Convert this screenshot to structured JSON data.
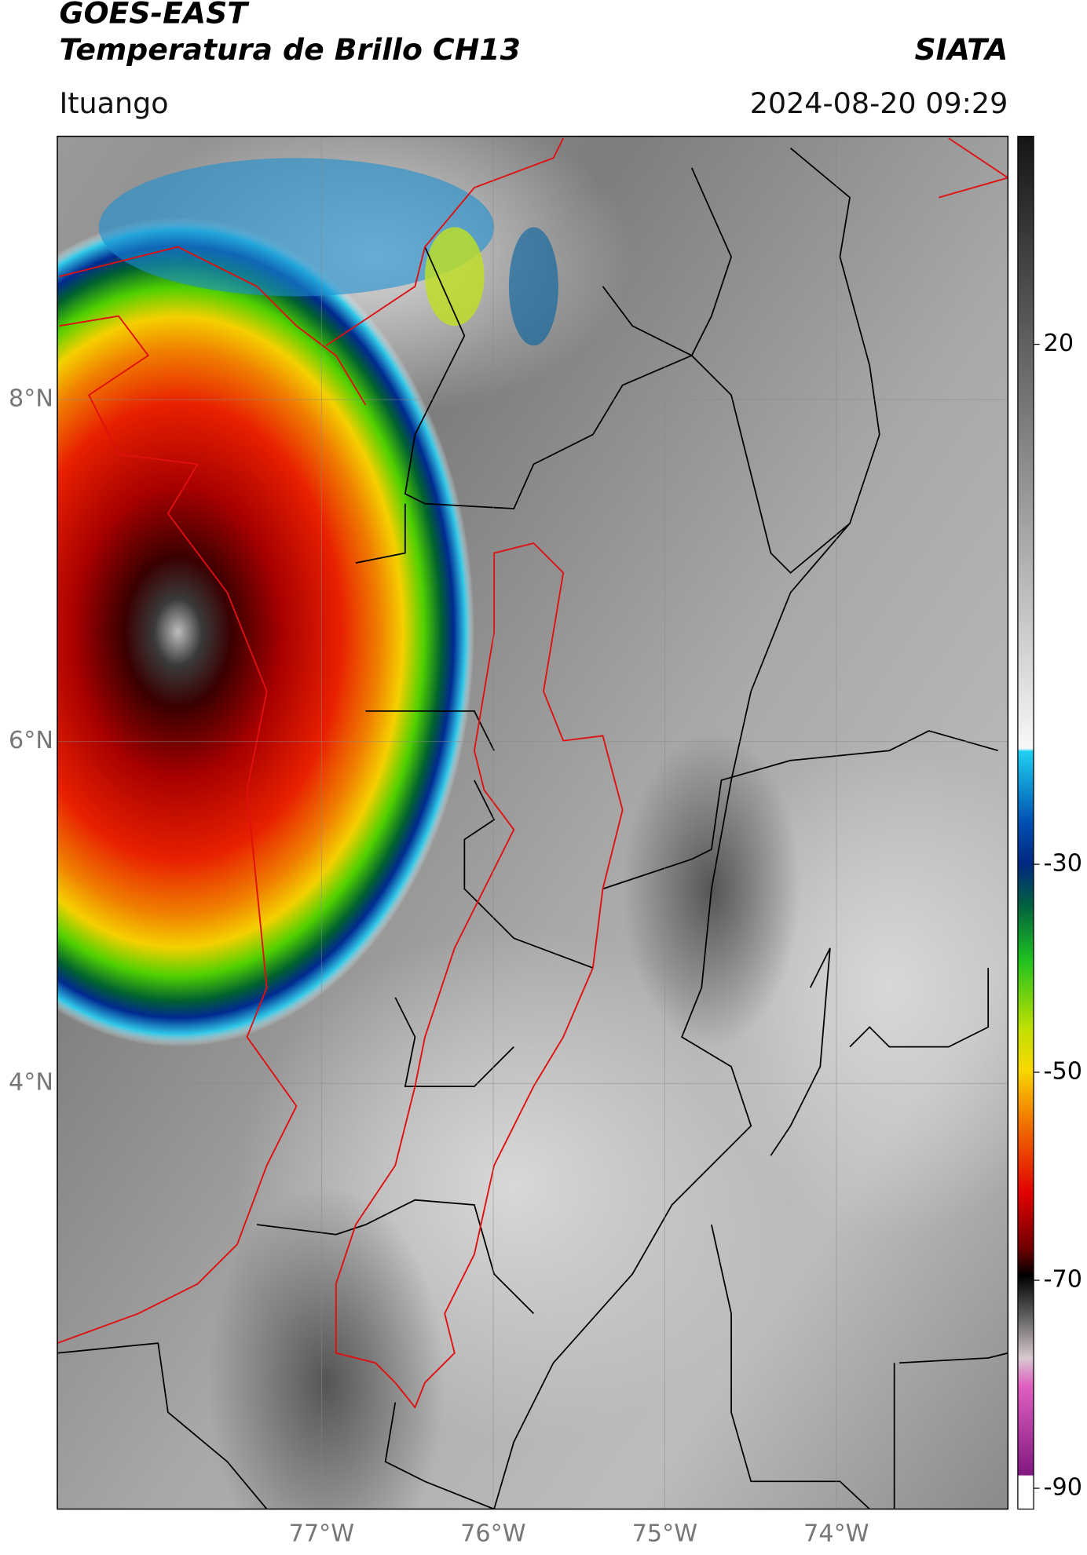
{
  "header": {
    "title": "GOES-EAST",
    "subtitle": "Temperatura de Brillo CH13",
    "agency": "SIATA",
    "location": "Ituango",
    "datetime": "2024-08-20 09:29"
  },
  "map": {
    "xlim": [
      -78.54,
      -73.0
    ],
    "ylim": [
      1.51,
      9.54
    ],
    "xticks": [
      {
        "value": -77,
        "label": "77°W"
      },
      {
        "value": -76,
        "label": "76°W"
      },
      {
        "value": -75,
        "label": "75°W"
      },
      {
        "value": -74,
        "label": "74°W"
      }
    ],
    "yticks": [
      {
        "value": 8,
        "label": "8°N"
      },
      {
        "value": 6,
        "label": "6°N"
      },
      {
        "value": 4,
        "label": "4°N"
      }
    ],
    "grid": true
  },
  "colorbar": {
    "lim": [
      -92,
      40
    ],
    "ticks": [
      20,
      -30,
      -50,
      -70,
      -90
    ]
  }
}
